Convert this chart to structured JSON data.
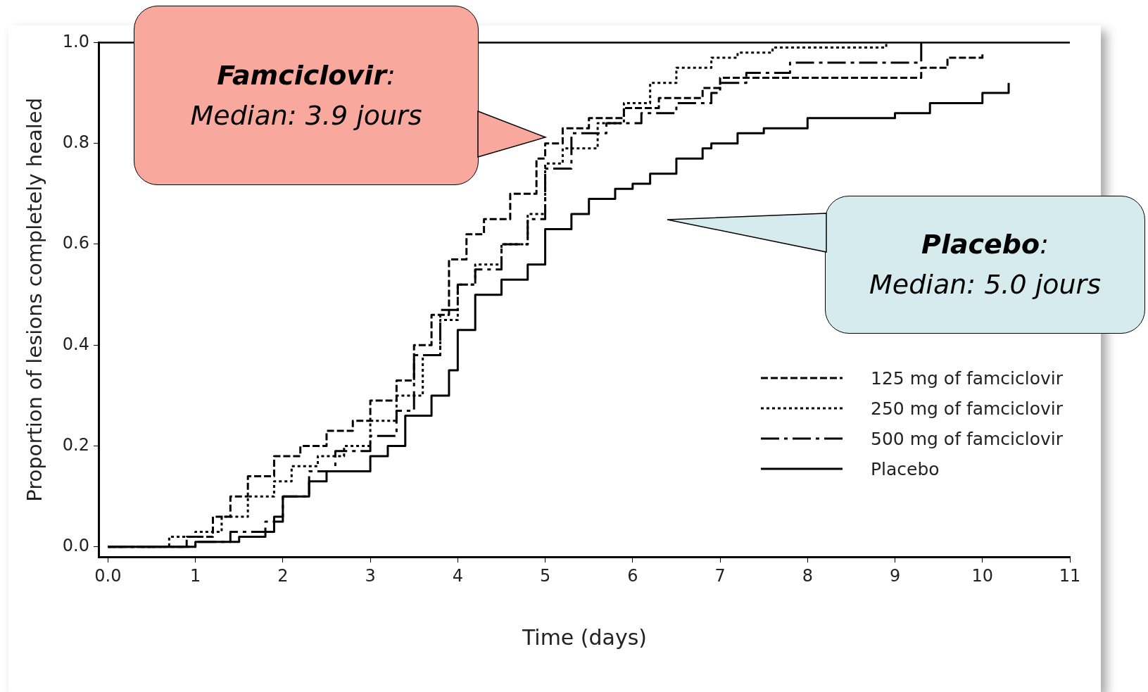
{
  "chart_data": {
    "type": "step",
    "xlabel": "Time (days)",
    "ylabel": "Proportion of lesions completely healed",
    "xlim": [
      -0.1,
      11
    ],
    "ylim": [
      -0.02,
      1.0
    ],
    "xticks": [
      {
        "value": 0,
        "label": "0.0"
      },
      1,
      2,
      3,
      4,
      5,
      6,
      7,
      8,
      9,
      10,
      11
    ],
    "yticks": [
      {
        "value": 0,
        "label": "0.0"
      },
      {
        "value": 0.2,
        "label": "0.2"
      },
      {
        "value": 0.4,
        "label": "0.4"
      },
      {
        "value": 0.6,
        "label": "0.6"
      },
      {
        "value": 0.8,
        "label": "0.8"
      },
      {
        "value": 1,
        "label": "1.0"
      }
    ],
    "legend": "right",
    "series": [
      {
        "name": "125 mg of famciclovir",
        "color": "#000000",
        "line_style": "dashed",
        "x": [
          0,
          0.9,
          1.2,
          1.4,
          1.6,
          1.9,
          2.2,
          2.5,
          2.8,
          3.0,
          3.3,
          3.5,
          3.7,
          3.9,
          4.1,
          4.3,
          4.6,
          4.9,
          5.0,
          5.2,
          5.5,
          5.9,
          6.3,
          6.8,
          7.0,
          7.6,
          9.3,
          9.6,
          10.0
        ],
        "values": [
          0,
          0.02,
          0.06,
          0.1,
          0.14,
          0.18,
          0.2,
          0.23,
          0.25,
          0.29,
          0.33,
          0.4,
          0.46,
          0.57,
          0.62,
          0.65,
          0.7,
          0.77,
          0.8,
          0.83,
          0.85,
          0.87,
          0.89,
          0.91,
          0.93,
          0.93,
          0.95,
          0.97,
          0.98
        ]
      },
      {
        "name": "250 mg of famciclovir",
        "color": "#000000",
        "line_style": "dotted",
        "x": [
          0,
          0.7,
          1.0,
          1.3,
          1.6,
          1.9,
          2.1,
          2.4,
          2.7,
          3.0,
          3.3,
          3.6,
          3.8,
          4.0,
          4.2,
          4.5,
          4.8,
          5.0,
          5.2,
          5.6,
          5.9,
          6.2,
          6.5,
          6.9,
          7.2,
          7.6,
          8.9
        ],
        "values": [
          0,
          0.02,
          0.03,
          0.06,
          0.1,
          0.13,
          0.16,
          0.18,
          0.2,
          0.25,
          0.3,
          0.38,
          0.45,
          0.52,
          0.56,
          0.6,
          0.66,
          0.76,
          0.79,
          0.84,
          0.88,
          0.92,
          0.95,
          0.97,
          0.98,
          0.99,
          1.0
        ]
      },
      {
        "name": "500 mg of famciclovir",
        "color": "#000000",
        "line_style": "dashed",
        "x": [
          0,
          1.0,
          1.4,
          1.8,
          2.0,
          2.3,
          2.6,
          3.0,
          3.3,
          3.5,
          3.8,
          4.0,
          4.2,
          4.5,
          4.8,
          5.0,
          5.3,
          5.7,
          6.1,
          6.5,
          6.9,
          7.0,
          7.3,
          7.8,
          8.4,
          9.3
        ],
        "values": [
          0,
          0.01,
          0.03,
          0.05,
          0.1,
          0.15,
          0.19,
          0.22,
          0.27,
          0.38,
          0.47,
          0.52,
          0.55,
          0.6,
          0.65,
          0.75,
          0.82,
          0.84,
          0.86,
          0.88,
          0.9,
          0.92,
          0.94,
          0.96,
          0.96,
          1.0
        ]
      },
      {
        "name": "Placebo",
        "color": "#000000",
        "line_style": "solid",
        "x": [
          0,
          1.0,
          1.5,
          1.8,
          1.9,
          2.0,
          2.3,
          2.5,
          3.0,
          3.2,
          3.4,
          3.7,
          3.9,
          4.0,
          4.2,
          4.5,
          4.8,
          5.0,
          5.3,
          5.5,
          5.8,
          6.0,
          6.2,
          6.5,
          6.8,
          6.9,
          7.2,
          7.5,
          8.0,
          9.0,
          9.4,
          10.0,
          10.3
        ],
        "values": [
          0,
          0.01,
          0.02,
          0.03,
          0.06,
          0.1,
          0.13,
          0.15,
          0.18,
          0.2,
          0.26,
          0.3,
          0.35,
          0.43,
          0.5,
          0.53,
          0.56,
          0.63,
          0.66,
          0.69,
          0.71,
          0.72,
          0.74,
          0.77,
          0.79,
          0.8,
          0.82,
          0.83,
          0.85,
          0.86,
          0.88,
          0.9,
          0.92
        ]
      }
    ],
    "ref_lines": [
      {
        "axis": "y",
        "value": 1.0
      }
    ],
    "annotations": [
      "Famciclovir: Median: 3.9 jours",
      "Placebo: Median: 5.0 jours"
    ]
  }
}
